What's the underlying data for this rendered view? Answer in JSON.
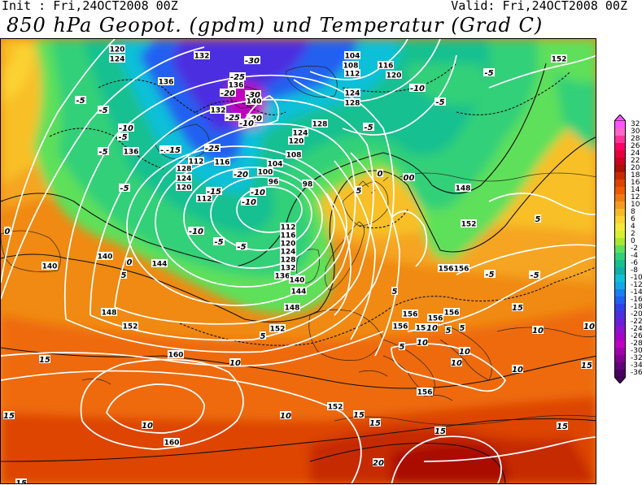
{
  "header": {
    "init_text": "Init : Fri,24OCT2008 00Z",
    "valid_text": "Valid: Fri,24OCT2008 00Z",
    "title": "850 hPa Geopot. (gpdm) und Temperatur (Grad C)"
  },
  "legend": {
    "values": [
      32,
      30,
      28,
      26,
      24,
      22,
      20,
      18,
      16,
      14,
      12,
      10,
      8,
      6,
      4,
      2,
      0,
      -2,
      -4,
      -6,
      -8,
      -10,
      -12,
      -14,
      -16,
      -18,
      -20,
      -22,
      -24,
      -26,
      -28,
      -30,
      -32,
      -34,
      -36
    ],
    "colors": [
      "#ff55ff",
      "#ff66cc",
      "#ff3399",
      "#ff0066",
      "#e6003a",
      "#cc0022",
      "#aa1100",
      "#c62a00",
      "#dd4400",
      "#ee5a00",
      "#f07a10",
      "#f59a20",
      "#f8b828",
      "#fbd230",
      "#f6e838",
      "#d8f030",
      "#a8e830",
      "#5ee05a",
      "#30d078",
      "#18c090",
      "#10b0a8",
      "#10c0d8",
      "#12a8e8",
      "#1880f0",
      "#2060f0",
      "#3040e8",
      "#4c2ee0",
      "#6a1ed8",
      "#8c12d0",
      "#aa00cc",
      "#c000c0",
      "#a000a8",
      "#800090",
      "#600078",
      "#480060"
    ]
  },
  "geopotential_labels": [
    {
      "text": "120"
    },
    {
      "text": "124"
    },
    {
      "text": "132"
    },
    {
      "text": "136"
    },
    {
      "text": "104"
    },
    {
      "text": "108"
    },
    {
      "text": "112"
    },
    {
      "text": "116"
    },
    {
      "text": "120"
    },
    {
      "text": "124"
    },
    {
      "text": "128"
    },
    {
      "text": "136"
    },
    {
      "text": "140"
    },
    {
      "text": "132"
    },
    {
      "text": "128"
    },
    {
      "text": "124"
    },
    {
      "text": "120"
    },
    {
      "text": "108"
    },
    {
      "text": "104"
    },
    {
      "text": "100"
    },
    {
      "text": "96"
    },
    {
      "text": "98"
    },
    {
      "text": "116"
    },
    {
      "text": "112"
    },
    {
      "text": "128"
    },
    {
      "text": "124"
    },
    {
      "text": "120"
    },
    {
      "text": "112"
    },
    {
      "text": "136"
    },
    {
      "text": "112"
    },
    {
      "text": "116"
    },
    {
      "text": "120"
    },
    {
      "text": "124"
    },
    {
      "text": "128"
    },
    {
      "text": "132"
    },
    {
      "text": "136"
    },
    {
      "text": "140"
    },
    {
      "text": "144"
    },
    {
      "text": "148"
    },
    {
      "text": "140"
    },
    {
      "text": "140"
    },
    {
      "text": "144"
    },
    {
      "text": "148"
    },
    {
      "text": "152"
    },
    {
      "text": "152"
    },
    {
      "text": "156"
    },
    {
      "text": "156"
    },
    {
      "text": "148"
    },
    {
      "text": "152"
    },
    {
      "text": "156"
    },
    {
      "text": "156"
    },
    {
      "text": "156"
    },
    {
      "text": "156"
    },
    {
      "text": "156"
    },
    {
      "text": "160"
    },
    {
      "text": "160"
    },
    {
      "text": "152"
    },
    {
      "text": "156"
    },
    {
      "text": "152"
    }
  ],
  "temperature_labels": [
    {
      "text": "-30"
    },
    {
      "text": "-25"
    },
    {
      "text": "-20"
    },
    {
      "text": "-30"
    },
    {
      "text": "-20"
    },
    {
      "text": "-10"
    },
    {
      "text": "-5"
    },
    {
      "text": "-5"
    },
    {
      "text": "-10"
    },
    {
      "text": "-5"
    },
    {
      "text": "-5"
    },
    {
      "text": "-15"
    },
    {
      "text": "-25"
    },
    {
      "text": "-25"
    },
    {
      "text": "-20"
    },
    {
      "text": "-15"
    },
    {
      "text": "-10"
    },
    {
      "text": "-10"
    },
    {
      "text": "-10"
    },
    {
      "text": "-5"
    },
    {
      "text": "-5"
    },
    {
      "text": "0"
    },
    {
      "text": "-5"
    },
    {
      "text": "-5"
    },
    {
      "text": "0"
    },
    {
      "text": "0"
    },
    {
      "text": "0"
    },
    {
      "text": "5"
    },
    {
      "text": "5"
    },
    {
      "text": "5"
    },
    {
      "text": "5"
    },
    {
      "text": "5"
    },
    {
      "text": "5"
    },
    {
      "text": "10"
    },
    {
      "text": "10"
    },
    {
      "text": "10"
    },
    {
      "text": "10"
    },
    {
      "text": "10"
    },
    {
      "text": "10"
    },
    {
      "text": "15"
    },
    {
      "text": "15"
    },
    {
      "text": "15"
    },
    {
      "text": "15"
    },
    {
      "text": "15"
    },
    {
      "text": "15"
    },
    {
      "text": "15"
    },
    {
      "text": "20"
    },
    {
      "text": "10"
    },
    {
      "text": "-5"
    },
    {
      "text": "-15"
    },
    {
      "text": "-10"
    },
    {
      "text": "-5"
    },
    {
      "text": "0"
    },
    {
      "text": "5"
    },
    {
      "text": "-5"
    },
    {
      "text": "-5"
    },
    {
      "text": "5"
    },
    {
      "text": "10"
    },
    {
      "text": "10"
    },
    {
      "text": "10"
    },
    {
      "text": "15"
    },
    {
      "text": "15"
    }
  ]
}
